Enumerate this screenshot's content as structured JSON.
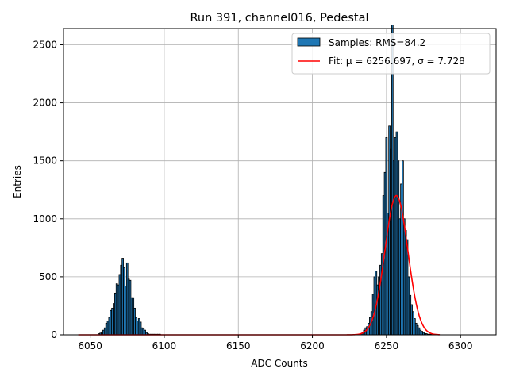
{
  "chart_data": {
    "type": "bar",
    "title": "Run 391, channel016, Pedestal",
    "xlabel": "ADC Counts",
    "ylabel": "Entries",
    "xlim": [
      6032,
      6324
    ],
    "ylim": [
      0,
      2640
    ],
    "xticks": [
      6050,
      6100,
      6150,
      6200,
      6250,
      6300
    ],
    "yticks": [
      0,
      500,
      1000,
      1500,
      2000,
      2500
    ],
    "grid": true,
    "legend_position": "upper-right",
    "colors": {
      "bar": "#1f77b4",
      "fit": "#ff0000",
      "grid": "#b0b0b0"
    },
    "legend": [
      {
        "label": "Samples: RMS=84.2",
        "kind": "patch"
      },
      {
        "label": "Fit: μ = 6256.697, σ = 7.728",
        "kind": "line"
      }
    ],
    "series": [
      {
        "name": "Samples: RMS=84.2",
        "type": "histogram",
        "x": [
          6056,
          6057,
          6058,
          6059,
          6060,
          6061,
          6062,
          6063,
          6064,
          6065,
          6066,
          6067,
          6068,
          6069,
          6070,
          6071,
          6072,
          6073,
          6074,
          6075,
          6076,
          6077,
          6078,
          6079,
          6080,
          6081,
          6082,
          6083,
          6084,
          6085,
          6086,
          6087,
          6088,
          6089,
          6090,
          6091,
          6092,
          6093,
          6094,
          6095,
          6096,
          6097,
          6232,
          6233,
          6234,
          6235,
          6236,
          6237,
          6238,
          6239,
          6240,
          6241,
          6242,
          6243,
          6244,
          6245,
          6246,
          6247,
          6248,
          6249,
          6250,
          6251,
          6252,
          6253,
          6254,
          6255,
          6256,
          6257,
          6258,
          6259,
          6260,
          6261,
          6262,
          6263,
          6264,
          6265,
          6266,
          6267,
          6268,
          6269,
          6270,
          6271,
          6272,
          6273,
          6274,
          6275,
          6276,
          6277,
          6278,
          6279,
          6280
        ],
        "values": [
          10,
          15,
          25,
          40,
          60,
          100,
          120,
          150,
          210,
          230,
          270,
          360,
          440,
          430,
          520,
          600,
          660,
          580,
          420,
          620,
          480,
          470,
          320,
          320,
          230,
          150,
          120,
          140,
          110,
          60,
          50,
          40,
          20,
          10,
          5,
          5,
          5,
          5,
          5,
          5,
          5,
          5,
          5,
          10,
          20,
          40,
          60,
          70,
          100,
          150,
          200,
          350,
          500,
          550,
          430,
          500,
          600,
          700,
          1200,
          1400,
          1700,
          1050,
          1800,
          1600,
          2670,
          1500,
          1700,
          1750,
          1500,
          1000,
          1300,
          1500,
          1000,
          900,
          820,
          500,
          340,
          260,
          200,
          140,
          100,
          80,
          60,
          40,
          30,
          20,
          10,
          10,
          5,
          5,
          5
        ]
      },
      {
        "name": "Fit: μ = 6256.697, σ = 7.728",
        "type": "gaussian-fit",
        "mu": 6256.697,
        "sigma": 7.728,
        "amplitude": 1200,
        "x_range": [
          6042,
          6286
        ]
      }
    ]
  }
}
